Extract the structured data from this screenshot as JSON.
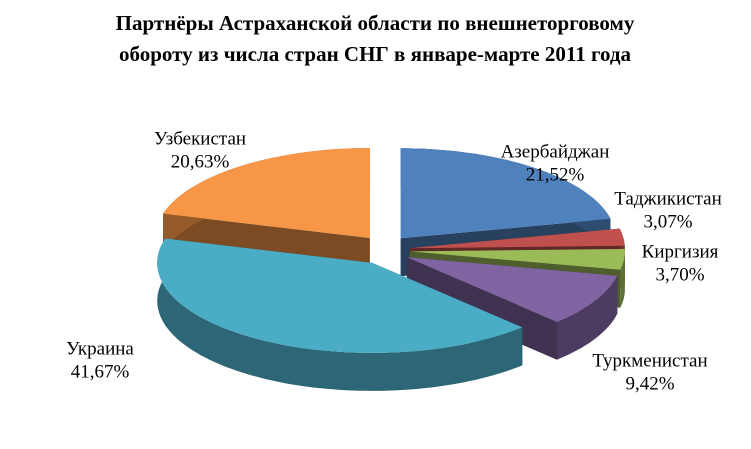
{
  "chart_data": {
    "type": "pie3d",
    "title": "Партнёры Астраханской области по внешнеторговому обороту  из числа стран СНГ в январе-марте 2011 года",
    "categories": [
      "Азербайджан",
      "Таджикистан",
      "Киргизия",
      "Туркменистан",
      "Украина",
      "Узбекистан"
    ],
    "values": [
      21.52,
      3.07,
      3.7,
      9.42,
      41.67,
      20.63
    ],
    "value_labels": [
      "21,52%",
      "3,07%",
      "3,70%",
      "9,42%",
      "41,67%",
      "20,63%"
    ],
    "colors": [
      "#4f81bd",
      "#c0504d",
      "#9bbb59",
      "#8064a2",
      "#4bacc6",
      "#f79646"
    ]
  }
}
